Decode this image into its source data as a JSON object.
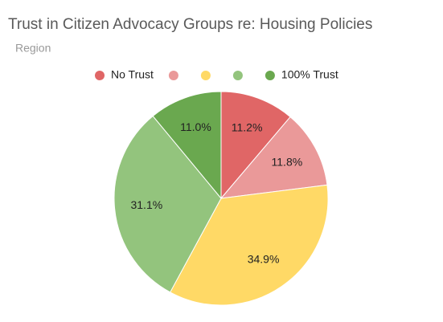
{
  "chart_data": {
    "type": "pie",
    "title": "Trust in Citizen Advocacy Groups re: Housing Policies",
    "subtitle": "Region",
    "categories": [
      "No Trust",
      null,
      null,
      null,
      "100% Trust"
    ],
    "values": [
      11.2,
      11.8,
      34.9,
      31.1,
      11.0
    ],
    "value_labels": [
      "11.2%",
      "11.8%",
      "34.9%",
      "31.1%",
      "11.0%"
    ],
    "colors": [
      "#e06666",
      "#ea9999",
      "#ffd966",
      "#93c47d",
      "#6aa84f"
    ],
    "legend": "top"
  }
}
